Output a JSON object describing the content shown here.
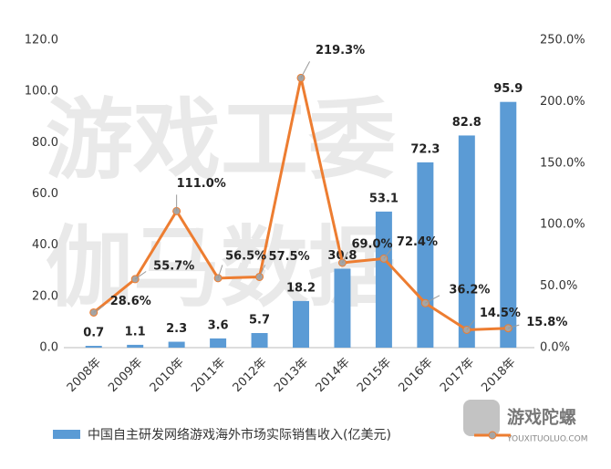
{
  "chart_data": {
    "type": "bar_line",
    "categories": [
      "2008年",
      "2009年",
      "2010年",
      "2011年",
      "2012年",
      "2013年",
      "2014年",
      "2015年",
      "2016年",
      "2017年",
      "2018年"
    ],
    "series": [
      {
        "name": "中国自主研发网络游戏海外市场实际销售收入(亿美元)",
        "type": "bar",
        "color": "#5b9bd5",
        "values": [
          0.7,
          1.1,
          2.3,
          3.6,
          5.7,
          18.2,
          30.8,
          53.1,
          72.3,
          82.8,
          95.9
        ]
      },
      {
        "type": "line",
        "axis": "y2",
        "color": "#ed7d31",
        "values": [
          28.6,
          55.7,
          111.0,
          56.5,
          57.5,
          219.3,
          69.0,
          72.4,
          36.2,
          14.5,
          15.8
        ],
        "value_labels": [
          "28.6%",
          "55.7%",
          "111.0%",
          "56.5%",
          "57.5%",
          "219.3%",
          "69.0%",
          "72.4%",
          "36.2%",
          "14.5%",
          "15.8%"
        ]
      }
    ],
    "ylim": [
      0,
      120
    ],
    "yticks": [
      {
        "value": 0,
        "label": "0.0"
      },
      {
        "value": 20,
        "label": "20.0"
      },
      {
        "value": 40,
        "label": "40.0"
      },
      {
        "value": 60,
        "label": "60.0"
      },
      {
        "value": 80,
        "label": "80.0"
      },
      {
        "value": 100,
        "label": "100.0"
      },
      {
        "value": 120,
        "label": "120.0"
      }
    ],
    "y2lim": [
      0,
      250
    ],
    "y2ticks": [
      {
        "value": 0,
        "label": "0.0%"
      },
      {
        "value": 50,
        "label": "50.0%"
      },
      {
        "value": 100,
        "label": "100.0%"
      },
      {
        "value": 150,
        "label": "150.0%"
      },
      {
        "value": 200,
        "label": "200.0%"
      },
      {
        "value": 250,
        "label": "250.0%"
      }
    ],
    "watermark": [
      "游戏工委",
      "伽马数据"
    ],
    "logo": "游戏陀螺",
    "logo_sub": "YOUXITUOLUO.COM"
  }
}
